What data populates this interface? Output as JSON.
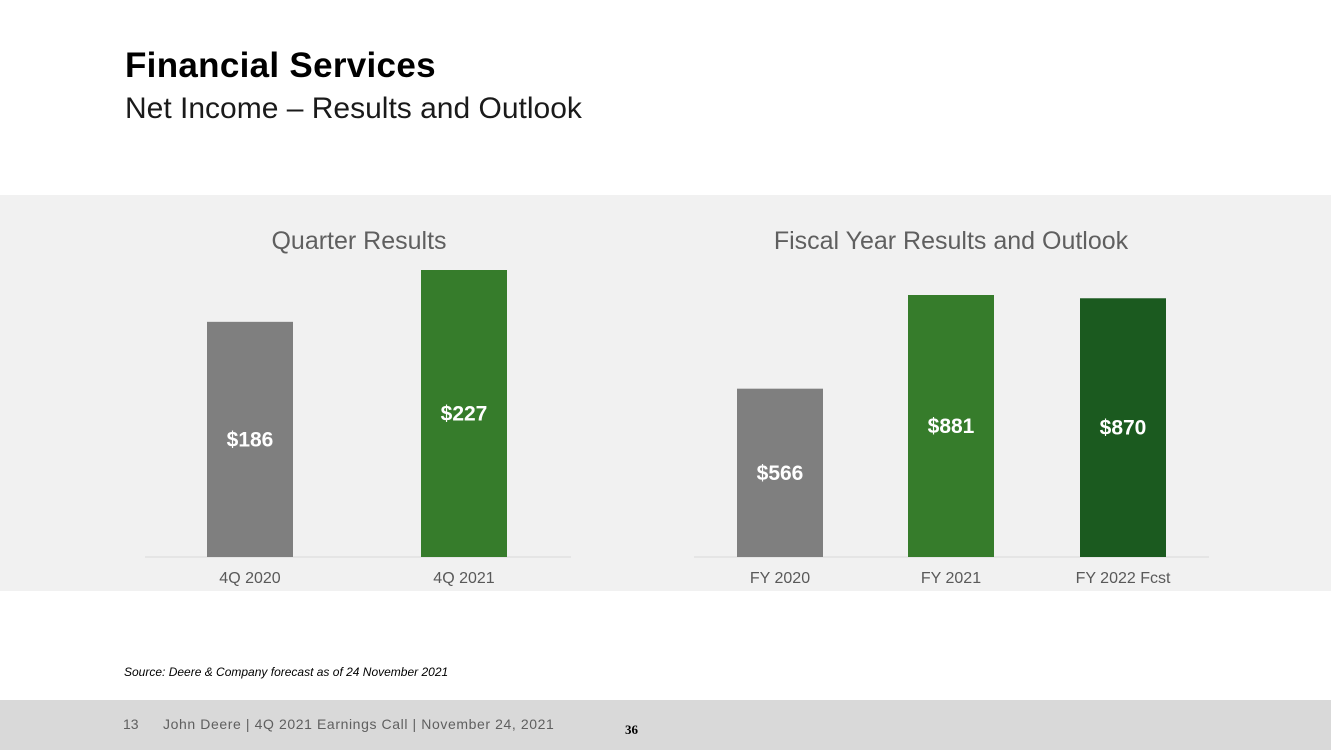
{
  "header": {
    "title": "Financial Services",
    "subtitle": "Net Income – Results and Outlook"
  },
  "chart_data": [
    {
      "type": "bar",
      "title": "Quarter Results",
      "categories": [
        "4Q 2020",
        "4Q 2021"
      ],
      "values": [
        186,
        227
      ],
      "value_labels": [
        "$186",
        "$227"
      ],
      "colors": [
        "#7f7f7f",
        "#367c2b"
      ],
      "ylim": [
        0,
        227
      ],
      "grid": false,
      "legend": "none"
    },
    {
      "type": "bar",
      "title": "Fiscal Year Results and Outlook",
      "categories": [
        "FY 2020",
        "FY 2021",
        "FY 2022 Fcst"
      ],
      "values": [
        566,
        881,
        870
      ],
      "value_labels": [
        "$566",
        "$881",
        "$870"
      ],
      "colors": [
        "#7f7f7f",
        "#367c2b",
        "#1b5a1f"
      ],
      "ylim": [
        0,
        881
      ],
      "grid": false,
      "legend": "none"
    }
  ],
  "source_note": "Source: Deere & Company forecast as of 24 November 2021",
  "footer": {
    "page": "13",
    "text": "John Deere | 4Q 2021 Earnings Call | November 24, 2021",
    "stamp": "36"
  }
}
